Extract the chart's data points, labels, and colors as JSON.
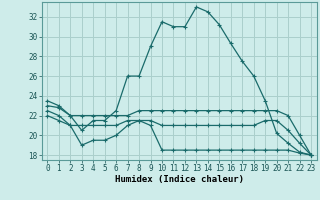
{
  "xlabel": "Humidex (Indice chaleur)",
  "bg_color": "#ceecea",
  "grid_color": "#aacfcc",
  "line_color": "#1a6b6b",
  "xlim": [
    -0.5,
    23.5
  ],
  "ylim": [
    17.5,
    33.5
  ],
  "yticks": [
    18,
    20,
    22,
    24,
    26,
    28,
    30,
    32
  ],
  "xticks": [
    0,
    1,
    2,
    3,
    4,
    5,
    6,
    7,
    8,
    9,
    10,
    11,
    12,
    13,
    14,
    15,
    16,
    17,
    18,
    19,
    20,
    21,
    22,
    23
  ],
  "series1": [
    23.5,
    23.0,
    22.0,
    20.5,
    21.5,
    21.5,
    22.5,
    26.0,
    26.0,
    29.0,
    31.5,
    31.0,
    31.0,
    33.0,
    32.5,
    31.2,
    29.3,
    27.5,
    26.0,
    23.5,
    20.2,
    19.2,
    18.3,
    18.0
  ],
  "series2": [
    23.0,
    22.8,
    22.0,
    22.0,
    22.0,
    22.0,
    22.0,
    22.0,
    22.5,
    22.5,
    22.5,
    22.5,
    22.5,
    22.5,
    22.5,
    22.5,
    22.5,
    22.5,
    22.5,
    22.5,
    22.5,
    22.0,
    20.0,
    18.0
  ],
  "series3": [
    22.5,
    22.0,
    21.0,
    21.0,
    21.0,
    21.0,
    21.0,
    21.5,
    21.5,
    21.5,
    21.0,
    21.0,
    21.0,
    21.0,
    21.0,
    21.0,
    21.0,
    21.0,
    21.0,
    21.5,
    21.5,
    20.5,
    19.2,
    18.0
  ],
  "series4": [
    22.0,
    21.5,
    21.0,
    19.0,
    19.5,
    19.5,
    20.0,
    21.0,
    21.5,
    21.0,
    18.5,
    18.5,
    18.5,
    18.5,
    18.5,
    18.5,
    18.5,
    18.5,
    18.5,
    18.5,
    18.5,
    18.5,
    18.2,
    18.0
  ],
  "xlabel_fontsize": 6.5,
  "tick_fontsize": 5.5
}
